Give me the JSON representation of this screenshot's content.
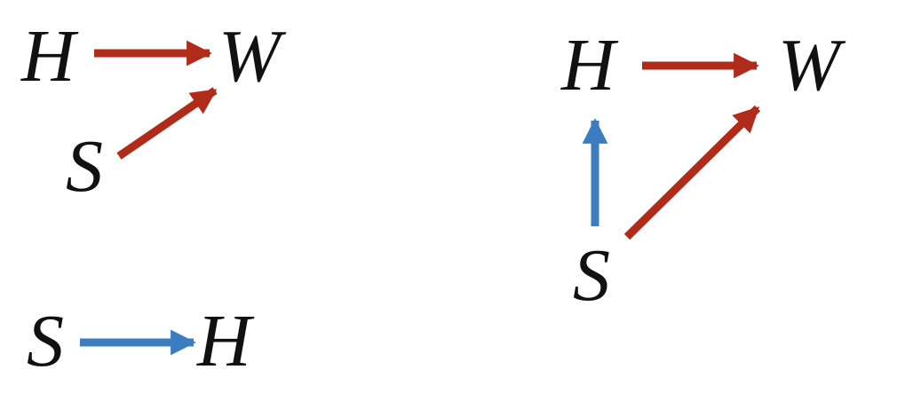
{
  "colors": {
    "red_arrow": "#B12B1B",
    "blue_arrow": "#3C7DC2",
    "text": "#111111",
    "background": "#FFFFFF"
  },
  "diagrams": [
    {
      "nodes": [
        {
          "id": "H",
          "label": "H"
        },
        {
          "id": "W",
          "label": "W"
        },
        {
          "id": "S",
          "label": "S"
        }
      ],
      "edges": [
        {
          "from": "H",
          "to": "W",
          "color": "red"
        },
        {
          "from": "S",
          "to": "W",
          "color": "red"
        }
      ]
    },
    {
      "nodes": [
        {
          "id": "S",
          "label": "S"
        },
        {
          "id": "H",
          "label": "H"
        }
      ],
      "edges": [
        {
          "from": "S",
          "to": "H",
          "color": "blue"
        }
      ]
    },
    {
      "nodes": [
        {
          "id": "H",
          "label": "H"
        },
        {
          "id": "W",
          "label": "W"
        },
        {
          "id": "S",
          "label": "S"
        }
      ],
      "edges": [
        {
          "from": "H",
          "to": "W",
          "color": "red"
        },
        {
          "from": "S",
          "to": "W",
          "color": "red"
        },
        {
          "from": "S",
          "to": "H",
          "color": "blue"
        }
      ]
    }
  ]
}
